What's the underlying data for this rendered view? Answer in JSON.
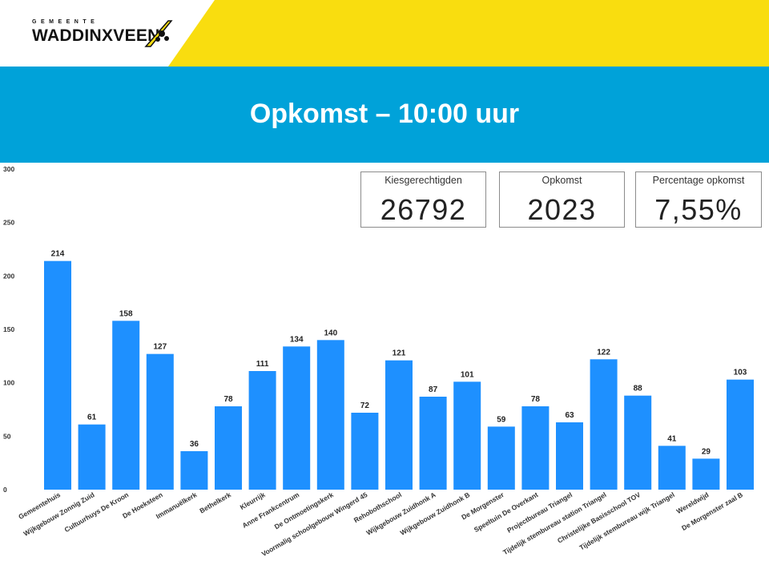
{
  "logo": {
    "small": "GEMEENTE",
    "name": "WADDINXVEEN"
  },
  "title": "Opkomst – 10:00 uur",
  "cards": [
    {
      "label": "Kiesgerechtigden",
      "value": "26792"
    },
    {
      "label": "Opkomst",
      "value": "2023"
    },
    {
      "label": "Percentage opkomst",
      "value": "7,55%"
    }
  ],
  "colors": {
    "banner": "#00a2d9",
    "yellow": "#f9dd0f",
    "bar": "#1e90ff"
  },
  "chart_data": {
    "type": "bar",
    "categories": [
      "Gemeentehuis",
      "Wijkgebouw Zonnig Zuid",
      "Cultuurhuys De Kroon",
      "De Hoeksteen",
      "Immanuëlkerk",
      "Bethelkerk",
      "Kleurrijk",
      "Anne Frankcentrum",
      "De Ontmoetingskerk",
      "Voormalig schoolgebouw Wingerd 45",
      "Rehobothschool",
      "Wijkgebouw Zuidhonk A",
      "Wijkgebouw Zuidhonk B",
      "De Morgenster",
      "Speeltuin De Overkant",
      "Projectbureau Triangel",
      "Tijdelijk stembureau station Triangel",
      "Christelijke Basisschool TOV",
      "Tijdelijk stembureau wijk Triangel",
      "Wereldwijd",
      "De Morgenster zaal B"
    ],
    "values": [
      214,
      61,
      158,
      127,
      36,
      78,
      111,
      134,
      140,
      72,
      121,
      87,
      101,
      59,
      78,
      63,
      122,
      88,
      41,
      29,
      103
    ],
    "yticks": [
      0,
      50,
      100,
      150,
      200,
      250,
      300
    ],
    "ylim": [
      0,
      300
    ],
    "grid": false,
    "data_labels": true
  }
}
